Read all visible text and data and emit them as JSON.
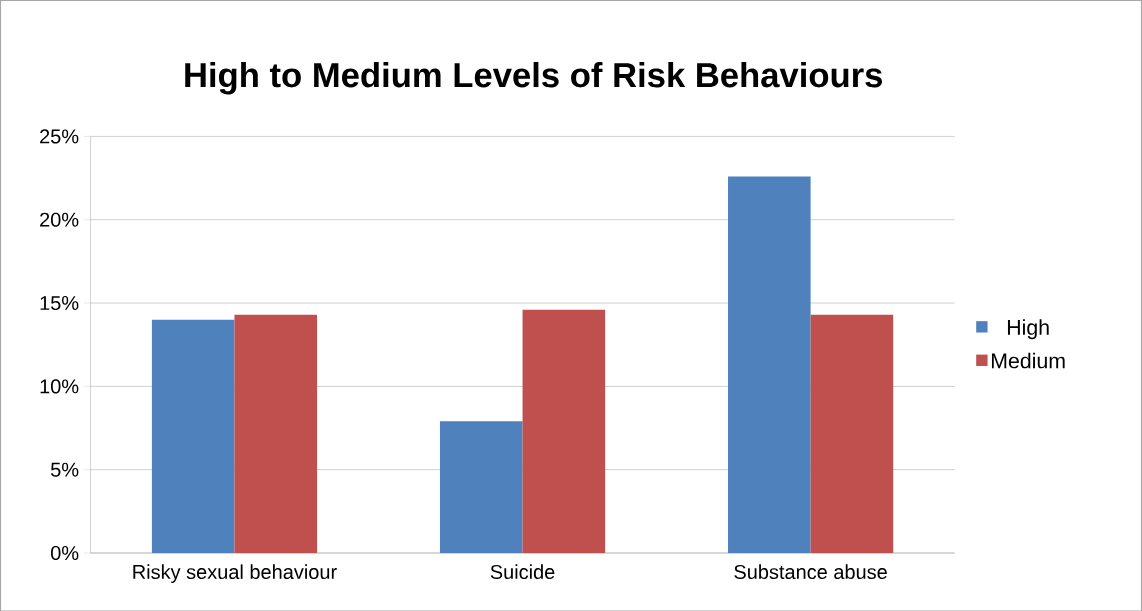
{
  "chart_data": {
    "type": "bar",
    "title": "High to Medium Levels of Risk Behaviours",
    "categories": [
      "Risky sexual behaviour",
      "Suicide",
      "Substance abuse"
    ],
    "series": [
      {
        "name": "High",
        "color": "#4f81bd",
        "values": [
          14.0,
          7.9,
          22.6
        ]
      },
      {
        "name": "Medium",
        "color": "#c0504d",
        "values": [
          14.3,
          14.6,
          14.3
        ]
      }
    ],
    "ylim": [
      0,
      25
    ],
    "yticks": [
      {
        "value": 0,
        "label": "0%"
      },
      {
        "value": 5,
        "label": "5%"
      },
      {
        "value": 10,
        "label": "10%"
      },
      {
        "value": 15,
        "label": "15%"
      },
      {
        "value": 20,
        "label": "20%"
      },
      {
        "value": 25,
        "label": "25%"
      }
    ],
    "grid": "y",
    "legend": "right"
  }
}
